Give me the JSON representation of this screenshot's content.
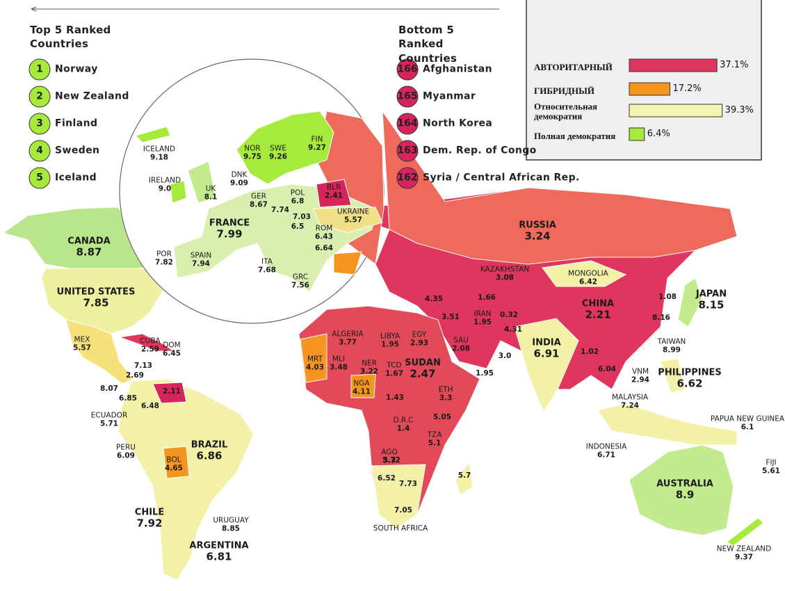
{
  "top_ranked": {
    "title": "Top 5 Ranked Countries",
    "items": [
      {
        "rank": 1,
        "name": "Norway"
      },
      {
        "rank": 2,
        "name": "New Zealand"
      },
      {
        "rank": 3,
        "name": "Finland"
      },
      {
        "rank": 4,
        "name": "Sweden"
      },
      {
        "rank": 5,
        "name": "Iceland"
      }
    ]
  },
  "bottom_ranked": {
    "title": "Bottom 5 Ranked Countries",
    "items": [
      {
        "rank": 166,
        "name": "Afghanistan"
      },
      {
        "rank": 165,
        "name": "Myanmar"
      },
      {
        "rank": 164,
        "name": "North Korea"
      },
      {
        "rank": 163,
        "name": "Dem. Rep. of Congo"
      },
      {
        "rank": 162,
        "name": "Syria / Central African Rep."
      }
    ]
  },
  "legend": [
    {
      "label": "АВТОРИТАРНЫЙ",
      "value": 37.1,
      "value_label": "37.1%",
      "color": "#e0365e"
    },
    {
      "label": "ГИБРИДНЫЙ",
      "value": 17.2,
      "value_label": "17.2%",
      "color": "#f5941e"
    },
    {
      "label": "Относительная демократия",
      "value": 39.3,
      "value_label": "39.3%",
      "color": "#f3f5b0"
    },
    {
      "label": "Полная демократия",
      "value": 6.4,
      "value_label": "6.4%",
      "color": "#a6ea3c"
    }
  ],
  "countries": [
    {
      "name": "ICELAND",
      "score": 9.18
    },
    {
      "name": "IRELAND",
      "score": 9.0,
      "score_label": "9.0"
    },
    {
      "name": "UK",
      "score": 8.1
    },
    {
      "name": "DNK",
      "score": 9.09
    },
    {
      "name": "NOR",
      "score": 9.75
    },
    {
      "name": "SWE",
      "score": 9.26
    },
    {
      "name": "FIN",
      "score": 9.27
    },
    {
      "name": "GER",
      "score": 8.67
    },
    {
      "name": "POL",
      "score": 6.8
    },
    {
      "name": "BLR",
      "score": 2.41
    },
    {
      "name": "UKRAINE",
      "score": 5.57
    },
    {
      "name": "FRANCE",
      "score": 7.99
    },
    {
      "name": "SPAIN",
      "score": 7.94
    },
    {
      "name": "POR",
      "score": 7.82
    },
    {
      "name": "ITA",
      "score": 7.68
    },
    {
      "name": "GRC",
      "score": 7.56
    },
    {
      "name": "ROM",
      "score": 6.43
    },
    {
      "name": null,
      "score": 7.74
    },
    {
      "name": null,
      "score": 7.03
    },
    {
      "name": null,
      "score": 6.5
    },
    {
      "name": null,
      "score": 6.64
    },
    {
      "name": "CANADA",
      "score": 8.87
    },
    {
      "name": "UNITED STATES",
      "score": 7.85
    },
    {
      "name": "MEX",
      "score": 5.57
    },
    {
      "name": "CUBA",
      "score": 2.59
    },
    {
      "name": "DOM",
      "score": 6.45
    },
    {
      "name": null,
      "score": 7.13
    },
    {
      "name": null,
      "score": 2.69
    },
    {
      "name": null,
      "score": 8.07
    },
    {
      "name": null,
      "score": 6.85
    },
    {
      "name": null,
      "score": 6.48
    },
    {
      "name": null,
      "score": 2.11
    },
    {
      "name": "ECUADOR",
      "score": 5.71
    },
    {
      "name": "PERU",
      "score": 6.09
    },
    {
      "name": "BRAZIL",
      "score": 6.86
    },
    {
      "name": "BOL",
      "score": 4.65
    },
    {
      "name": "CHILE",
      "score": 7.92
    },
    {
      "name": "URUGUAY",
      "score": 8.85
    },
    {
      "name": "ARGENTINA",
      "score": 6.81
    },
    {
      "name": "RUSSIA",
      "score": 3.24
    },
    {
      "name": "KAZAKHSTAN",
      "score": 3.08
    },
    {
      "name": "MONGOLIA",
      "score": 6.42
    },
    {
      "name": "CHINA",
      "score": 2.21
    },
    {
      "name": "JAPAN",
      "score": 8.15
    },
    {
      "name": null,
      "score": 1.08
    },
    {
      "name": null,
      "score": 8.16
    },
    {
      "name": "TAIWAN",
      "score": 8.99
    },
    {
      "name": "INDIA",
      "score": 6.91
    },
    {
      "name": "IRAN",
      "score": 1.95
    },
    {
      "name": null,
      "score": 1.66
    },
    {
      "name": null,
      "score": 0.32
    },
    {
      "name": null,
      "score": 4.31
    },
    {
      "name": null,
      "score": 4.35
    },
    {
      "name": null,
      "score": 3.51
    },
    {
      "name": "SAU",
      "score": 2.08
    },
    {
      "name": null,
      "score": 3.0,
      "score_label": "3.0"
    },
    {
      "name": null,
      "score": 1.95
    },
    {
      "name": "VNM",
      "score": 2.94
    },
    {
      "name": "PHILIPPINES",
      "score": 6.62
    },
    {
      "name": "MALAYSIA",
      "score": 7.24
    },
    {
      "name": null,
      "score": 1.02
    },
    {
      "name": null,
      "score": 6.04
    },
    {
      "name": "INDONESIA",
      "score": 6.71
    },
    {
      "name": "PAPUA NEW GUINEA",
      "score": 6.1
    },
    {
      "name": "FIJI",
      "score": 5.61
    },
    {
      "name": "AUSTRALIA",
      "score": 8.9
    },
    {
      "name": "NEW ZEALAND",
      "score": 9.37
    },
    {
      "name": "ALGERIA",
      "score": 3.77
    },
    {
      "name": "LIBYA",
      "score": 1.95
    },
    {
      "name": "EGY",
      "score": 2.93
    },
    {
      "name": "MRT",
      "score": 4.03
    },
    {
      "name": "MLI",
      "score": 3.48
    },
    {
      "name": "NER",
      "score": 3.22
    },
    {
      "name": "TCD",
      "score": 1.67
    },
    {
      "name": "SUDAN",
      "score": 2.47
    },
    {
      "name": "NGA",
      "score": 4.11
    },
    {
      "name": "ETH",
      "score": 3.3
    },
    {
      "name": null,
      "score": 1.43
    },
    {
      "name": "D.R.C",
      "score": 1.4
    },
    {
      "name": null,
      "score": 5.05
    },
    {
      "name": "TZA",
      "score": 5.1
    },
    {
      "name": "AGO",
      "score": 3.3
    },
    {
      "name": null,
      "score": 5.72
    },
    {
      "name": null,
      "score": 5.7
    },
    {
      "name": null,
      "score": 6.52
    },
    {
      "name": null,
      "score": 7.73
    },
    {
      "name": null,
      "score": 7.05
    },
    {
      "name": "SOUTH AFRICA",
      "score": null
    }
  ]
}
